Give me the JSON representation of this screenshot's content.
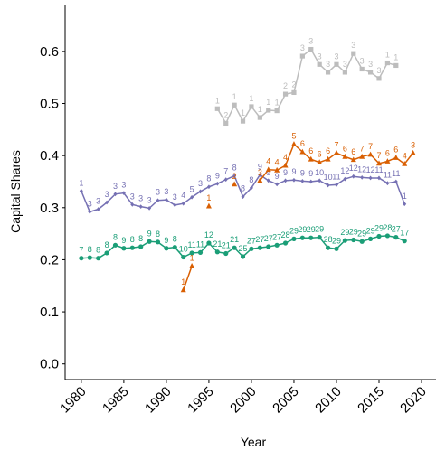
{
  "chart_data": {
    "type": "line",
    "x_label": "Year",
    "y_label": "Capital Shares",
    "x": [
      1980,
      1981,
      1982,
      1983,
      1984,
      1985,
      1986,
      1987,
      1988,
      1989,
      1990,
      1991,
      1992,
      1993,
      1994,
      1995,
      1996,
      1997,
      1998,
      1999,
      2000,
      2001,
      2002,
      2003,
      2004,
      2005,
      2006,
      2007,
      2008,
      2009,
      2010,
      2011,
      2012,
      2013,
      2014,
      2015,
      2016,
      2017,
      2018,
      2019
    ],
    "xlim": [
      1978.1,
      2021.7
    ],
    "xticks": [
      1980,
      1985,
      1990,
      1995,
      2000,
      2005,
      2010,
      2015,
      2020
    ],
    "ylim": [
      -0.03,
      0.69
    ],
    "yticks": [
      {
        "value": 0,
        "label": "0.0"
      },
      0.1,
      0.2,
      0.3,
      0.4,
      0.5,
      0.6
    ],
    "series": [
      {
        "color": "#1b9e77",
        "marker": "circle",
        "values": [
          0.203,
          0.204,
          0.203,
          0.213,
          0.228,
          0.222,
          0.223,
          0.225,
          0.235,
          0.234,
          0.222,
          0.224,
          0.205,
          0.213,
          0.214,
          0.232,
          0.215,
          0.212,
          0.223,
          0.206,
          0.221,
          0.223,
          0.225,
          0.228,
          0.232,
          0.24,
          0.242,
          0.242,
          0.243,
          0.223,
          0.221,
          0.237,
          0.238,
          0.235,
          0.24,
          0.245,
          0.246,
          0.243,
          0.236,
          null
        ],
        "point_labels": [
          7,
          8,
          8,
          8,
          8,
          9,
          8,
          8,
          9,
          8,
          9,
          8,
          10,
          11,
          11,
          12,
          21,
          21,
          21,
          25,
          27,
          27,
          27,
          27,
          28,
          29,
          29,
          29,
          29,
          28,
          29,
          29,
          29,
          29,
          29,
          29,
          28,
          27,
          17,
          null
        ]
      },
      {
        "color": "#7570b3",
        "marker": "diamond",
        "values": [
          0.332,
          0.292,
          0.297,
          0.31,
          0.326,
          0.328,
          0.306,
          0.302,
          0.299,
          0.314,
          0.315,
          0.305,
          0.308,
          0.32,
          0.331,
          0.34,
          0.346,
          0.354,
          0.361,
          0.321,
          0.338,
          0.363,
          0.352,
          0.345,
          0.352,
          0.353,
          0.351,
          0.35,
          0.352,
          0.343,
          0.344,
          0.355,
          0.36,
          0.358,
          0.357,
          0.357,
          0.347,
          0.35,
          0.307,
          null
        ],
        "point_labels": [
          1,
          3,
          3,
          3,
          3,
          3,
          3,
          3,
          3,
          3,
          3,
          3,
          4,
          5,
          3,
          8,
          9,
          7,
          8,
          8,
          8,
          9,
          9,
          9,
          9,
          9,
          9,
          9,
          10,
          10,
          11,
          12,
          12,
          12,
          12,
          11,
          11,
          11,
          1,
          null
        ]
      },
      {
        "color": "#d95f02",
        "marker": "triangle",
        "values": [
          null,
          null,
          null,
          null,
          null,
          null,
          null,
          null,
          null,
          null,
          null,
          null,
          0.142,
          0.188,
          null,
          0.303,
          null,
          null,
          0.345,
          null,
          null,
          0.352,
          0.373,
          0.372,
          0.381,
          0.422,
          0.407,
          0.393,
          0.387,
          0.393,
          0.405,
          0.398,
          0.392,
          0.398,
          0.402,
          0.385,
          0.389,
          0.396,
          0.384,
          0.405
        ],
        "point_labels": [
          null,
          null,
          null,
          null,
          null,
          null,
          null,
          null,
          null,
          null,
          null,
          null,
          1,
          1,
          null,
          1,
          null,
          null,
          2,
          null,
          null,
          3,
          4,
          4,
          4,
          5,
          6,
          6,
          6,
          6,
          7,
          6,
          6,
          7,
          7,
          7,
          6,
          6,
          4,
          3
        ]
      },
      {
        "color": "#bdbdbd",
        "marker": "square",
        "values": [
          null,
          null,
          null,
          null,
          null,
          null,
          null,
          null,
          null,
          null,
          null,
          null,
          null,
          null,
          null,
          null,
          0.49,
          0.462,
          0.497,
          0.466,
          0.494,
          0.473,
          0.487,
          0.486,
          0.518,
          0.521,
          0.591,
          0.604,
          0.575,
          0.56,
          0.575,
          0.56,
          0.596,
          0.566,
          0.56,
          0.548,
          0.578,
          0.573,
          null,
          null
        ],
        "point_labels": [
          null,
          null,
          null,
          null,
          null,
          null,
          null,
          null,
          null,
          null,
          null,
          null,
          null,
          null,
          null,
          null,
          1,
          2,
          1,
          1,
          1,
          1,
          1,
          1,
          2,
          2,
          3,
          3,
          3,
          3,
          3,
          3,
          3,
          3,
          3,
          3,
          1,
          1,
          null,
          null
        ]
      }
    ]
  }
}
